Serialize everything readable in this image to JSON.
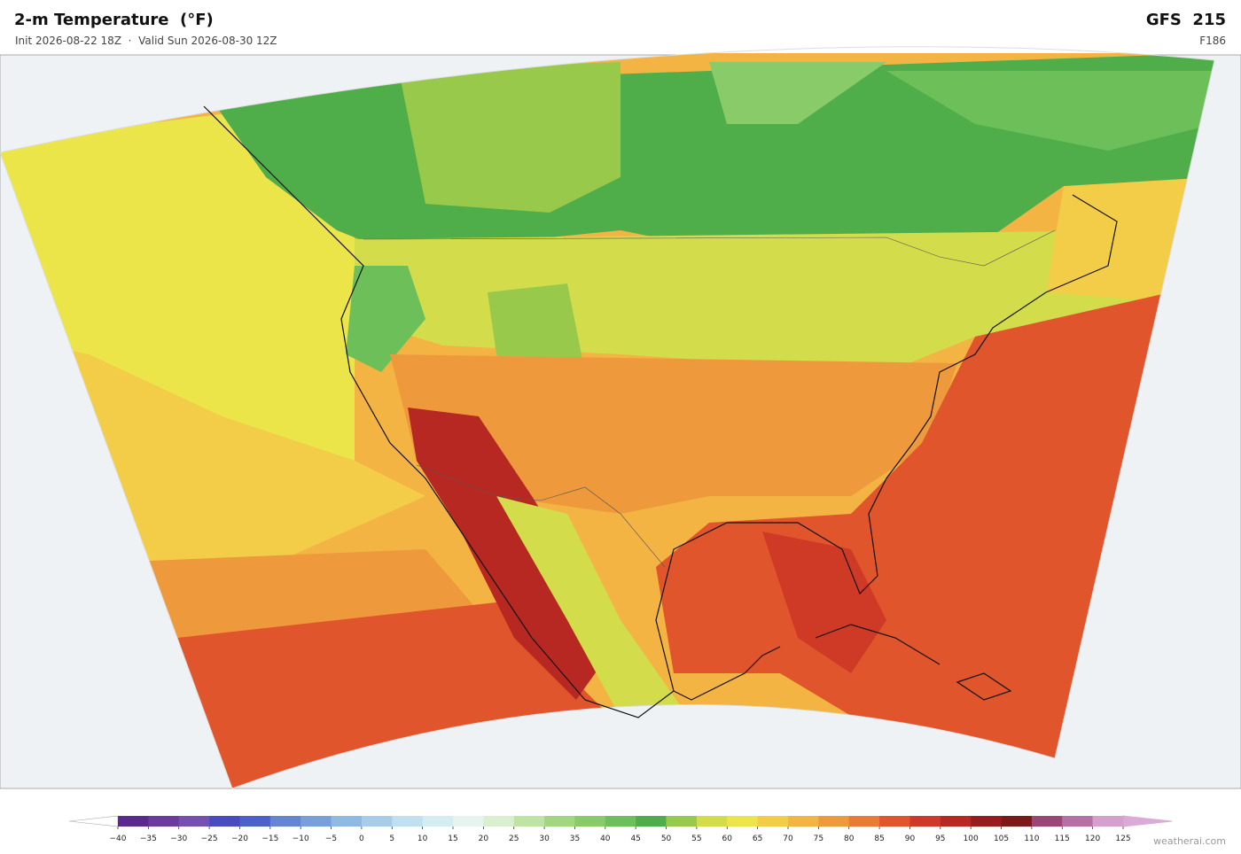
{
  "header": {
    "title": "2-m Temperature  (°F)",
    "subtitle": "Init 2026-08-22 18Z  ·  Valid Sun 2026-08-30 12Z",
    "model": "GFS  215",
    "forecast_hour": "F186"
  },
  "colorbar": {
    "ticks": [
      {
        "value": -40,
        "label": "−40"
      },
      {
        "value": -35,
        "label": "−35"
      },
      {
        "value": -30,
        "label": "−30"
      },
      {
        "value": -25,
        "label": "−25"
      },
      {
        "value": -20,
        "label": "−20"
      },
      {
        "value": -15,
        "label": "−15"
      },
      {
        "value": -10,
        "label": "−10"
      },
      {
        "value": -5,
        "label": "−5"
      },
      0,
      5,
      10,
      15,
      20,
      25,
      30,
      35,
      40,
      45,
      50,
      55,
      60,
      65,
      70,
      75,
      80,
      85,
      90,
      95,
      100,
      105,
      110,
      115,
      120,
      125
    ],
    "colors": [
      "#5b2a8f",
      "#6b3a9e",
      "#7550b0",
      "#4a4bbf",
      "#4d5fcb",
      "#6585d4",
      "#7a9ddc",
      "#8fb8e2",
      "#a9cde9",
      "#c0e0ef",
      "#d5ecf2",
      "#e6f4f0",
      "#d9efcf",
      "#bfe3a4",
      "#a3d67f",
      "#88cb68",
      "#6dbf5a",
      "#4fae4a",
      "#99c94a",
      "#d3dc4a",
      "#ece54a",
      "#f3cd48",
      "#f3b443",
      "#ee9a3c",
      "#e87c34",
      "#e0552b",
      "#cf3a26",
      "#b72822",
      "#961c20",
      "#7d1818",
      "#9b4677",
      "#b86fa4",
      "#d4a0cc"
    ],
    "under_color": "#ffffff",
    "over_color": "#dcaad6"
  },
  "footer": {
    "credit": "weatherai.com"
  }
}
